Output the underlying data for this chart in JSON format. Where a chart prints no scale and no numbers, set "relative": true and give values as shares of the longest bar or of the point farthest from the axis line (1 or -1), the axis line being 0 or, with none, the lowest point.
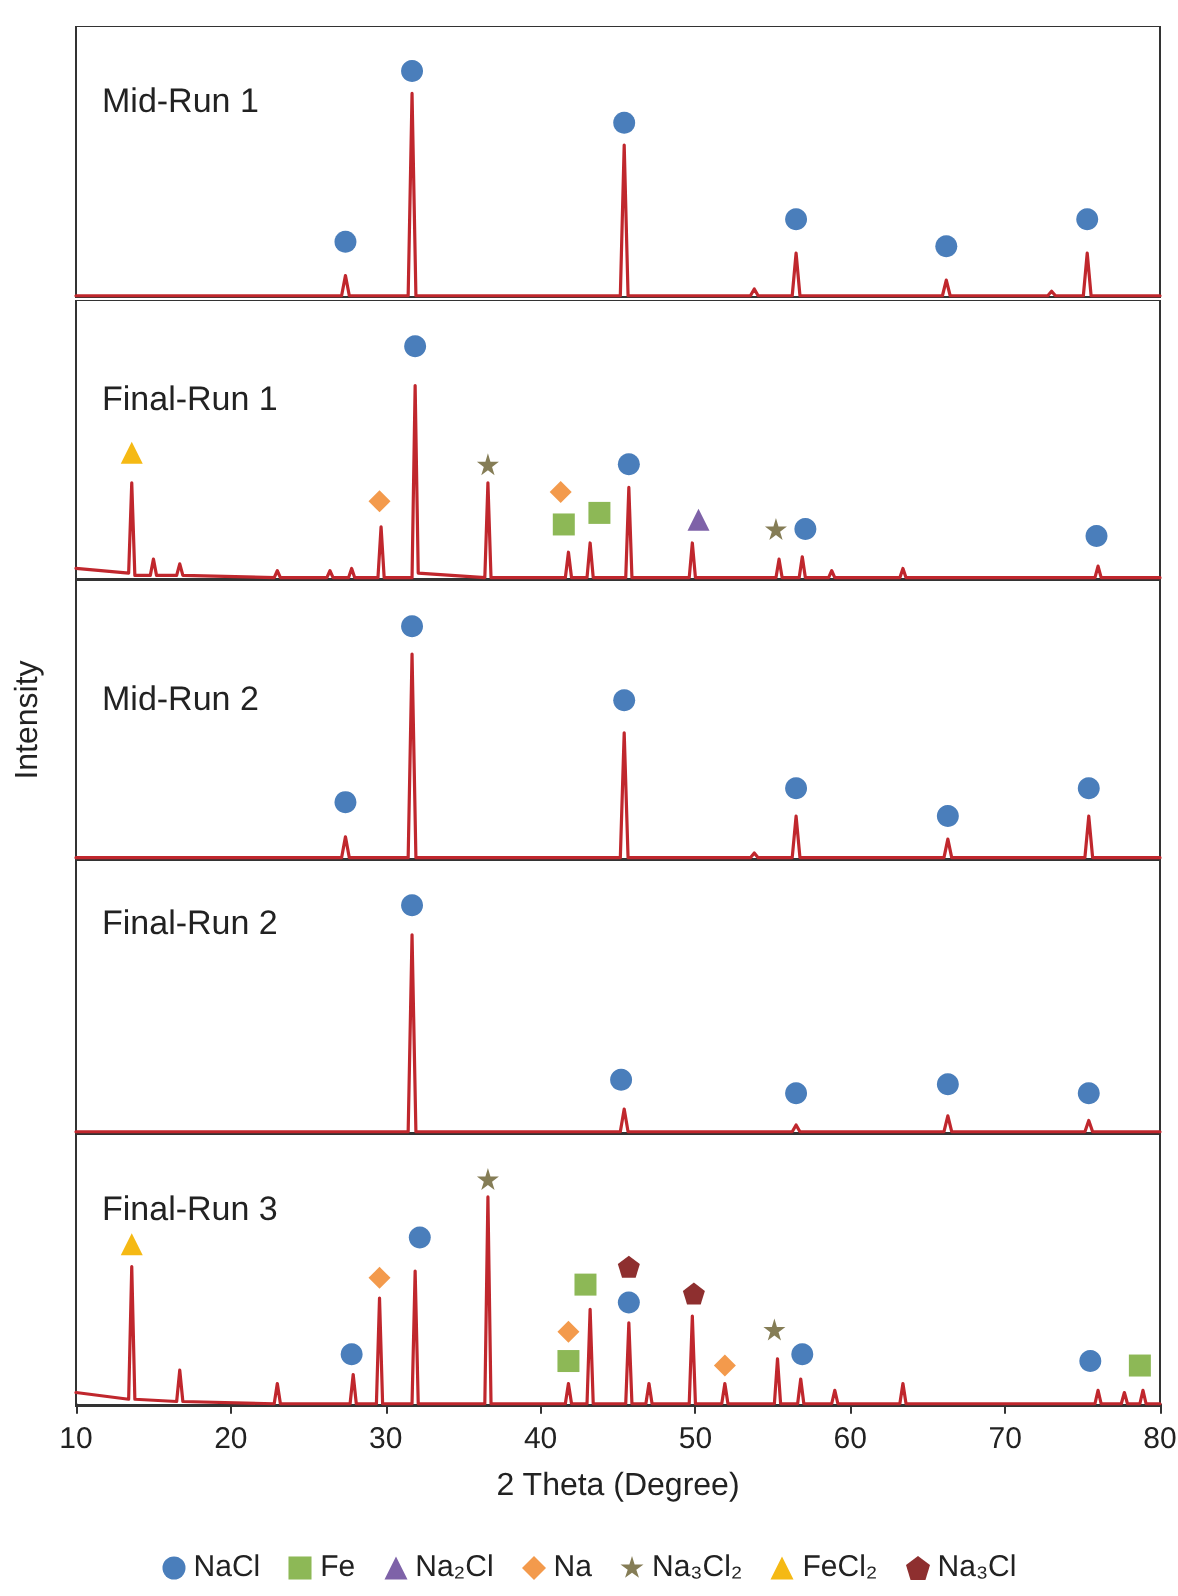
{
  "chart_data": [
    {
      "type": "line",
      "title": "Mid-Run 1",
      "relative": true,
      "xlim": [
        10,
        80
      ],
      "tick_labels": false,
      "series": [
        {
          "color": "#c0272d",
          "marker": "none",
          "x": [
            10,
            27.15,
            27.4,
            27.65,
            31.45,
            31.7,
            31.95,
            45.15,
            45.4,
            45.65,
            53.55,
            53.8,
            54.05,
            56.25,
            56.5,
            56.75,
            65.95,
            66.2,
            66.45,
            72.75,
            73,
            73.25,
            75.05,
            75.3,
            75.55,
            80
          ],
          "values": [
            0,
            0,
            0.09,
            0,
            0,
            0.9,
            0,
            0,
            0.67,
            0,
            0,
            0.03,
            0,
            0,
            0.19,
            0,
            0,
            0.07,
            0,
            0,
            0.02,
            0,
            0,
            0.19,
            0,
            0
          ]
        },
        {
          "type": "scatter",
          "color": "#4a7ebb",
          "marker": "circle",
          "x": [
            27.4,
            31.7,
            45.4,
            56.5,
            66.2,
            75.3
          ],
          "values": [
            0.24,
            1,
            0.77,
            0.34,
            0.22,
            0.34
          ]
        }
      ]
    },
    {
      "type": "line",
      "title": "Final-Run 1",
      "relative": true,
      "xlim": [
        10,
        80
      ],
      "tick_labels": false,
      "series": [
        {
          "color": "#c0272d",
          "marker": "none",
          "x": [
            10,
            13.4,
            13.6,
            13.8,
            14.8,
            15.0,
            15.2,
            16.5,
            16.7,
            16.9,
            22.8,
            23.0,
            23.2,
            26.2,
            26.4,
            26.6,
            27.6,
            27.8,
            28.0,
            29.5,
            29.7,
            29.9,
            31.7,
            31.9,
            32.1,
            36.4,
            36.6,
            36.8,
            41.6,
            41.8,
            42.0,
            43.0,
            43.2,
            43.4,
            45.5,
            45.7,
            45.9,
            49.6,
            49.8,
            50.0,
            55.2,
            55.4,
            55.6,
            56.7,
            56.9,
            57.1,
            58.6,
            58.8,
            59.0,
            63.2,
            63.4,
            63.6,
            75.8,
            76.0,
            76.2,
            80
          ],
          "values": [
            0.04,
            0.02,
            0.41,
            0.01,
            0.01,
            0.08,
            0.01,
            0.01,
            0.06,
            0.01,
            0,
            0.03,
            0,
            0,
            0.03,
            0,
            0,
            0.04,
            0,
            0,
            0.22,
            0,
            0,
            0.83,
            0.02,
            0,
            0.41,
            0,
            0,
            0.11,
            0,
            0,
            0.15,
            0,
            0,
            0.39,
            0,
            0,
            0.15,
            0,
            0,
            0.08,
            0,
            0,
            0.09,
            0,
            0,
            0.03,
            0,
            0,
            0.04,
            0,
            0,
            0.05,
            0,
            0
          ]
        },
        {
          "type": "scatter",
          "color": "#4a7ebb",
          "marker": "circle",
          "x": [
            31.9,
            45.7,
            57.1,
            75.9
          ],
          "values": [
            1,
            0.49,
            0.21,
            0.18
          ]
        },
        {
          "type": "scatter",
          "color": "#8db856",
          "marker": "square",
          "x": [
            41.5,
            43.8
          ],
          "values": [
            0.23,
            0.28
          ]
        },
        {
          "type": "scatter",
          "name": "Na₂Cl",
          "color": "#7e62a8",
          "marker": "triangle",
          "x": [
            50.2
          ],
          "values": [
            0.25
          ]
        },
        {
          "type": "scatter",
          "color": "#f39a4c",
          "marker": "diamond",
          "x": [
            29.6,
            41.3
          ],
          "values": [
            0.33,
            0.37
          ]
        },
        {
          "type": "scatter",
          "color": "#857d56",
          "marker": "star",
          "x": [
            36.6,
            55.2
          ],
          "values": [
            0.49,
            0.21
          ]
        },
        {
          "type": "scatter",
          "color": "#f5b914",
          "marker": "triangle",
          "x": [
            13.6
          ],
          "values": [
            0.54
          ]
        }
      ]
    },
    {
      "type": "line",
      "title": "Mid-Run 2",
      "ylabel": "Intensity",
      "relative": true,
      "xlim": [
        10,
        80
      ],
      "tick_labels": false,
      "series": [
        {
          "color": "#c0272d",
          "marker": "none",
          "x": [
            10,
            27.15,
            27.4,
            27.65,
            31.45,
            31.7,
            31.95,
            45.15,
            45.4,
            45.65,
            53.55,
            53.8,
            54.05,
            56.25,
            56.5,
            56.75,
            66.05,
            66.3,
            66.55,
            75.15,
            75.4,
            75.65,
            80
          ],
          "values": [
            0,
            0,
            0.09,
            0,
            0,
            0.88,
            0,
            0,
            0.54,
            0,
            0,
            0.02,
            0,
            0,
            0.18,
            0,
            0,
            0.08,
            0,
            0,
            0.18,
            0,
            0
          ]
        },
        {
          "type": "scatter",
          "color": "#4a7ebb",
          "marker": "circle",
          "x": [
            27.4,
            31.7,
            45.4,
            56.5,
            66.3,
            75.4
          ],
          "values": [
            0.24,
            1,
            0.68,
            0.3,
            0.18,
            0.3
          ]
        }
      ]
    },
    {
      "type": "line",
      "title": "Final-Run 2",
      "relative": true,
      "xlim": [
        10,
        80
      ],
      "tick_labels": false,
      "series": [
        {
          "color": "#c0272d",
          "marker": "none",
          "x": [
            10,
            31.45,
            31.7,
            31.95,
            45.15,
            45.4,
            45.65,
            56.25,
            56.5,
            56.75,
            66.05,
            66.3,
            66.55,
            75.15,
            75.4,
            75.65,
            80
          ],
          "values": [
            0,
            0,
            0.87,
            0,
            0,
            0.1,
            0,
            0,
            0.03,
            0,
            0,
            0.07,
            0,
            0,
            0.05,
            0,
            0
          ]
        },
        {
          "type": "scatter",
          "color": "#4a7ebb",
          "marker": "circle",
          "x": [
            31.7,
            45.2,
            56.5,
            66.3,
            75.4
          ],
          "values": [
            1,
            0.23,
            0.17,
            0.21,
            0.17
          ]
        }
      ]
    },
    {
      "type": "line",
      "title": "Final-Run 3",
      "xlabel": "2 Theta (Degree)",
      "relative": true,
      "xlim": [
        10,
        80
      ],
      "xticks": [
        10,
        20,
        30,
        40,
        50,
        60,
        70,
        80
      ],
      "tick_labels": "x",
      "legend": "bottom",
      "series": [
        {
          "color": "#c0272d",
          "marker": "none",
          "x": [
            10,
            13.4,
            13.6,
            13.8,
            16.5,
            16.7,
            16.9,
            22.8,
            23.0,
            23.2,
            27.7,
            27.9,
            28.1,
            29.4,
            29.6,
            29.8,
            31.7,
            31.9,
            32.1,
            36.4,
            36.6,
            36.8,
            41.6,
            41.8,
            42.0,
            43.0,
            43.2,
            43.4,
            45.5,
            45.7,
            45.9,
            46.8,
            47.0,
            47.2,
            49.6,
            49.8,
            50.0,
            51.7,
            51.9,
            52.1,
            55.1,
            55.3,
            55.5,
            56.6,
            56.8,
            57.0,
            58.8,
            59.0,
            59.2,
            63.2,
            63.4,
            63.6,
            75.8,
            76.0,
            76.2,
            77.5,
            77.7,
            77.9,
            78.7,
            78.9,
            79.1,
            80
          ],
          "values": [
            0.05,
            0.02,
            0.61,
            0.02,
            0.01,
            0.15,
            0.01,
            0,
            0.09,
            0,
            0,
            0.13,
            0,
            0,
            0.47,
            0,
            0,
            0.59,
            0,
            0,
            0.92,
            0,
            0,
            0.09,
            0,
            0,
            0.42,
            0,
            0,
            0.36,
            0,
            0,
            0.09,
            0,
            0,
            0.39,
            0,
            0,
            0.09,
            0,
            0,
            0.2,
            0,
            0,
            0.11,
            0,
            0,
            0.06,
            0,
            0,
            0.09,
            0,
            0,
            0.06,
            0,
            0,
            0.05,
            0,
            0,
            0.06,
            0,
            0
          ]
        },
        {
          "type": "scatter",
          "name": "NaCl",
          "color": "#4a7ebb",
          "marker": "circle",
          "x": [
            27.8,
            32.2,
            45.7,
            56.9,
            75.5
          ],
          "values": [
            0.22,
            0.74,
            0.45,
            0.22,
            0.19
          ]
        },
        {
          "type": "scatter",
          "name": "Fe",
          "color": "#8db856",
          "marker": "square",
          "x": [
            41.8,
            42.9,
            78.7
          ],
          "values": [
            0.19,
            0.53,
            0.17
          ]
        },
        {
          "type": "scatter",
          "name": "Na",
          "color": "#f39a4c",
          "marker": "diamond",
          "x": [
            29.6,
            41.8,
            51.9
          ],
          "values": [
            0.56,
            0.32,
            0.17
          ]
        },
        {
          "type": "scatter",
          "name": "Na₃Cl₂",
          "color": "#857d56",
          "marker": "star",
          "x": [
            36.6,
            55.1
          ],
          "values": [
            1,
            0.33
          ]
        },
        {
          "type": "scatter",
          "name": "FeCl₂",
          "color": "#f5b914",
          "marker": "triangle",
          "x": [
            13.6
          ],
          "values": [
            0.71
          ]
        },
        {
          "type": "scatter",
          "name": "Na₃Cl",
          "color": "#8e2f2f",
          "x": [
            45.7,
            49.9
          ],
          "values": [
            0.61,
            0.49
          ]
        }
      ]
    }
  ]
}
